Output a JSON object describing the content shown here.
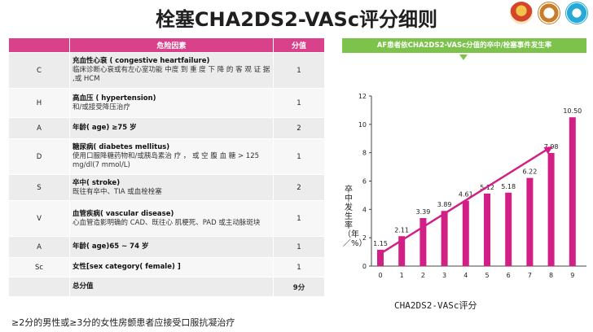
{
  "title": "栓塞CHA2DS2-VASc评分细则",
  "logos": {
    "logo1_icon": "congress-logo-icon",
    "logo1_caption": "",
    "logo2_icon": "society-seal-icon",
    "logo3_icon": "hospital-logo-icon"
  },
  "table": {
    "headers": [
      "",
      "危险因素",
      "分值"
    ],
    "rows": [
      {
        "code": "C",
        "term": "充血性心衰 ( congestive  heartfailure)",
        "detail": "临床诊断心衰或有左心室功能 中度 到 重 度 下 降 的 客 观 证 据 ,或 HCM",
        "score": "1"
      },
      {
        "code": "H",
        "term": "高血压 ( hypertension)",
        "detail": "和/或接受降压治疗",
        "score": "1"
      },
      {
        "code": "A",
        "term": "年龄( age) ≥75 岁",
        "detail": "",
        "score": "2"
      },
      {
        "code": "D",
        "term": "糖尿病( diabetes mellitus)",
        "detail": "使用口服降糖药物和/或胰岛素治 疗 ， 或 空 腹 血 糖 > 125 mg/dl(7 mmol/L)",
        "score": "1"
      },
      {
        "code": "S",
        "term": "卒中( stroke)",
        "detail": "既往有卒中、TIA 或血栓栓塞",
        "score": "2"
      },
      {
        "code": "V",
        "term": "血管疾病( vascular disease)",
        "detail": "心血管造影明确的 CAD、既往心 肌梗死、PAD 或主动脉斑块",
        "score": "1"
      },
      {
        "code": "A",
        "term": "年龄( age)65 ~ 74 岁",
        "detail": "",
        "score": "1"
      },
      {
        "code": "Sc",
        "term": "女性[sex category( female) ]",
        "detail": "",
        "score": "1"
      },
      {
        "code": "",
        "term": "总分值",
        "detail": "",
        "score": "9分"
      }
    ]
  },
  "footnote": "≥2分的男性或≥3分的女性房颤患者应接受口服抗凝治疗",
  "chart_header": "AF患者依CHA2DS2-VASc分值的卒中/栓塞事件发生率",
  "chart_data": {
    "type": "bar",
    "categories": [
      "0",
      "1",
      "2",
      "3",
      "4",
      "5",
      "6",
      "7",
      "8",
      "9"
    ],
    "values": [
      1.15,
      2.11,
      3.39,
      3.89,
      4.61,
      5.12,
      5.18,
      6.22,
      7.98,
      10.5
    ],
    "value_labels": [
      "1.15",
      "2.11",
      "3.39",
      "3.89",
      "4.61",
      "5.12",
      "5.18",
      "6.22",
      "7.98",
      "10.50"
    ],
    "ylim": [
      0,
      12
    ],
    "yticks": [
      "0",
      "2",
      "4",
      "6",
      "8",
      "10",
      "12"
    ],
    "xlabel": "CHA2DS2-VASc评分",
    "ylabel": "卒中发生率（年／%）",
    "bar_color": "#d21f86",
    "trend_color": "#d21f86",
    "grid": false
  }
}
